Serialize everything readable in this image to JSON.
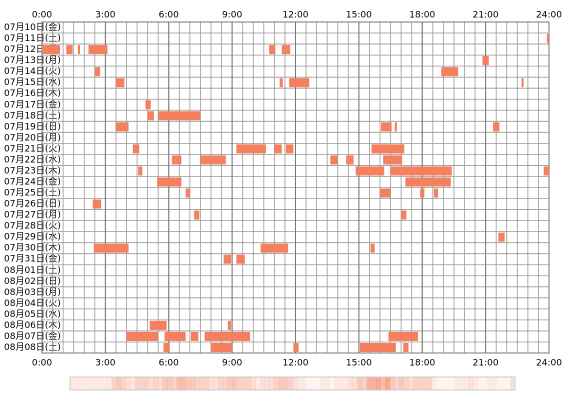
{
  "chart_data": {
    "type": "timeline",
    "color": "#f4805f",
    "xlim": [
      0,
      24
    ],
    "xticks": [
      {
        "value": 0,
        "label": "0:00"
      },
      {
        "value": 3,
        "label": "3:00"
      },
      {
        "value": 6,
        "label": "6:00"
      },
      {
        "value": 9,
        "label": "9:00"
      },
      {
        "value": 12,
        "label": "12:00"
      },
      {
        "value": 15,
        "label": "15:00"
      },
      {
        "value": 18,
        "label": "18:00"
      },
      {
        "value": 21,
        "label": "21:00"
      },
      {
        "value": 24,
        "label": "24:00"
      }
    ],
    "rows": [
      {
        "label": "07月10日(金)",
        "segments": []
      },
      {
        "label": "07月11日(土)",
        "segments": [
          [
            23.9,
            24
          ]
        ]
      },
      {
        "label": "07月12日(日)",
        "segments": [
          [
            0,
            0.85
          ],
          [
            1.15,
            1.45
          ],
          [
            1.7,
            1.8
          ],
          [
            2.2,
            3.1
          ],
          [
            10.75,
            11.05
          ],
          [
            11.35,
            11.75
          ]
        ]
      },
      {
        "label": "07月13日(月)",
        "segments": [
          [
            20.85,
            21.15
          ]
        ]
      },
      {
        "label": "07月14日(火)",
        "segments": [
          [
            2.5,
            2.75
          ],
          [
            18.9,
            19.7
          ]
        ]
      },
      {
        "label": "07月15日(水)",
        "segments": [
          [
            3.5,
            3.9
          ],
          [
            11.25,
            11.4
          ],
          [
            11.7,
            12.65
          ],
          [
            22.7,
            22.8
          ]
        ]
      },
      {
        "label": "07月16日(木)",
        "segments": []
      },
      {
        "label": "07月17日(金)",
        "segments": [
          [
            4.9,
            5.15
          ]
        ]
      },
      {
        "label": "07月18日(土)",
        "segments": [
          [
            5,
            5.3
          ],
          [
            5.5,
            7.5
          ]
        ]
      },
      {
        "label": "07月19日(日)",
        "segments": [
          [
            3.5,
            4.1
          ],
          [
            16.05,
            16.55
          ],
          [
            16.7,
            16.8
          ],
          [
            21.35,
            21.65
          ]
        ]
      },
      {
        "label": "07月20日(月)",
        "segments": []
      },
      {
        "label": "07月21日(火)",
        "segments": [
          [
            4.3,
            4.6
          ],
          [
            9.2,
            10.6
          ],
          [
            11,
            11.35
          ],
          [
            11.55,
            11.9
          ],
          [
            15.6,
            17.15
          ]
        ]
      },
      {
        "label": "07月22日(水)",
        "segments": [
          [
            6.15,
            6.6
          ],
          [
            7.5,
            8.7
          ],
          [
            13.65,
            14
          ],
          [
            14.4,
            14.75
          ],
          [
            16.15,
            17.05
          ]
        ]
      },
      {
        "label": "07月23日(木)",
        "segments": [
          [
            4.55,
            4.75
          ],
          [
            14.85,
            16.2
          ],
          [
            16.5,
            19.4
          ],
          [
            23.75,
            24
          ]
        ]
      },
      {
        "label": "07月24日(金)",
        "segments": [
          [
            5.45,
            6.6
          ],
          [
            17.2,
            19.35
          ]
        ]
      },
      {
        "label": "07月25日(土)",
        "segments": [
          [
            6.8,
            7
          ],
          [
            16,
            16.5
          ],
          [
            17.9,
            18.1
          ],
          [
            18.55,
            18.75
          ]
        ]
      },
      {
        "label": "07月26日(日)",
        "segments": [
          [
            2.4,
            2.8
          ]
        ]
      },
      {
        "label": "07月27日(月)",
        "segments": [
          [
            7.2,
            7.45
          ],
          [
            17,
            17.25
          ]
        ]
      },
      {
        "label": "07月28日(火)",
        "segments": []
      },
      {
        "label": "07月29日(水)",
        "segments": [
          [
            21.6,
            21.9
          ]
        ]
      },
      {
        "label": "07月30日(木)",
        "segments": [
          [
            2.45,
            4.1
          ],
          [
            10.35,
            11.65
          ],
          [
            15.55,
            15.75
          ]
        ]
      },
      {
        "label": "07月31日(金)",
        "segments": [
          [
            8.6,
            8.95
          ],
          [
            9.2,
            9.6
          ]
        ]
      },
      {
        "label": "08月01日(土)",
        "segments": []
      },
      {
        "label": "08月02日(日)",
        "segments": []
      },
      {
        "label": "08月03日(月)",
        "segments": []
      },
      {
        "label": "08月04日(火)",
        "segments": []
      },
      {
        "label": "08月05日(水)",
        "segments": []
      },
      {
        "label": "08月06日(木)",
        "segments": [
          [
            5.1,
            5.9
          ],
          [
            8.8,
            8.95
          ]
        ]
      },
      {
        "label": "08月07日(金)",
        "segments": [
          [
            4,
            5.5
          ],
          [
            5.8,
            6.8
          ],
          [
            7.05,
            7.4
          ],
          [
            7.7,
            9.85
          ],
          [
            16.4,
            17.8
          ]
        ]
      },
      {
        "label": "08月08日(土)",
        "segments": [
          [
            5.75,
            6.05
          ],
          [
            8,
            9
          ],
          [
            11.9,
            12.15
          ],
          [
            15.05,
            16.75
          ],
          [
            17.1,
            17.35
          ]
        ]
      }
    ]
  }
}
